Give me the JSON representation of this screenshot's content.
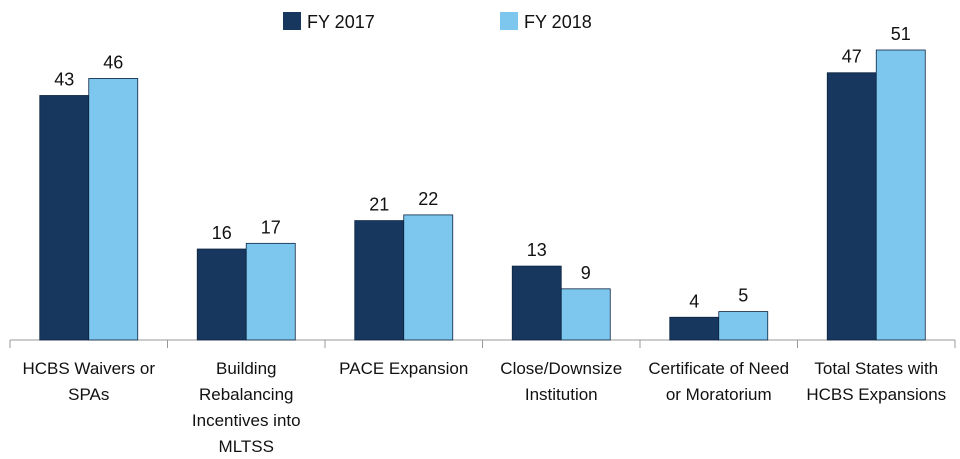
{
  "chart_data": {
    "type": "bar",
    "categories": [
      "HCBS Waivers or SPAs",
      "Building Rebalancing Incentives into MLTSS",
      "PACE Expansion",
      "Close/Downsize Institution",
      "Certificate of Need or Moratorium",
      "Total States with HCBS Expansions"
    ],
    "series": [
      {
        "name": "FY 2017",
        "color": "#17375e",
        "values": [
          43,
          16,
          21,
          13,
          4,
          47
        ]
      },
      {
        "name": "FY 2018",
        "color": "#7dc6ee",
        "values": [
          46,
          17,
          22,
          9,
          5,
          51
        ]
      }
    ],
    "legend": "top"
  }
}
